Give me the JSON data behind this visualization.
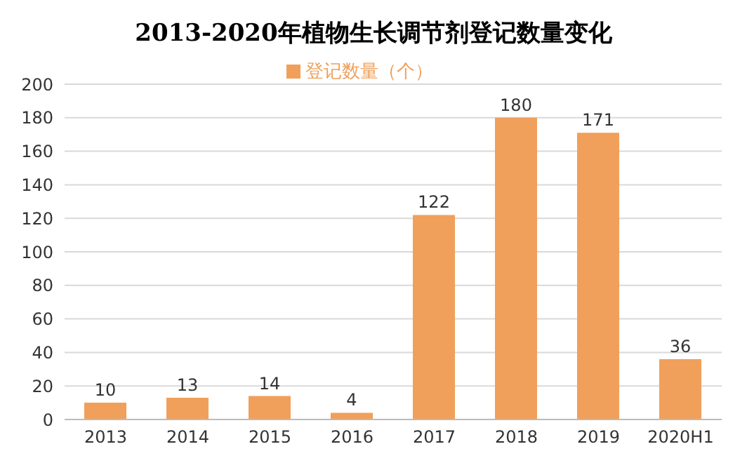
{
  "chart_data": {
    "type": "bar",
    "title": "2013-2020年植物生长调节剂登记数量变化",
    "categories": [
      "2013",
      "2014",
      "2015",
      "2016",
      "2017",
      "2018",
      "2019",
      "2020H1"
    ],
    "series": [
      {
        "name": "登记数量（个）",
        "color": "#f0a05a",
        "values": [
          10,
          13,
          14,
          4,
          122,
          180,
          171,
          36
        ]
      }
    ],
    "ylim": [
      0,
      200
    ],
    "yticks": [
      0,
      20,
      40,
      60,
      80,
      100,
      120,
      140,
      160,
      180,
      200
    ],
    "grid": "y",
    "legend": "top",
    "data_labels": true
  }
}
